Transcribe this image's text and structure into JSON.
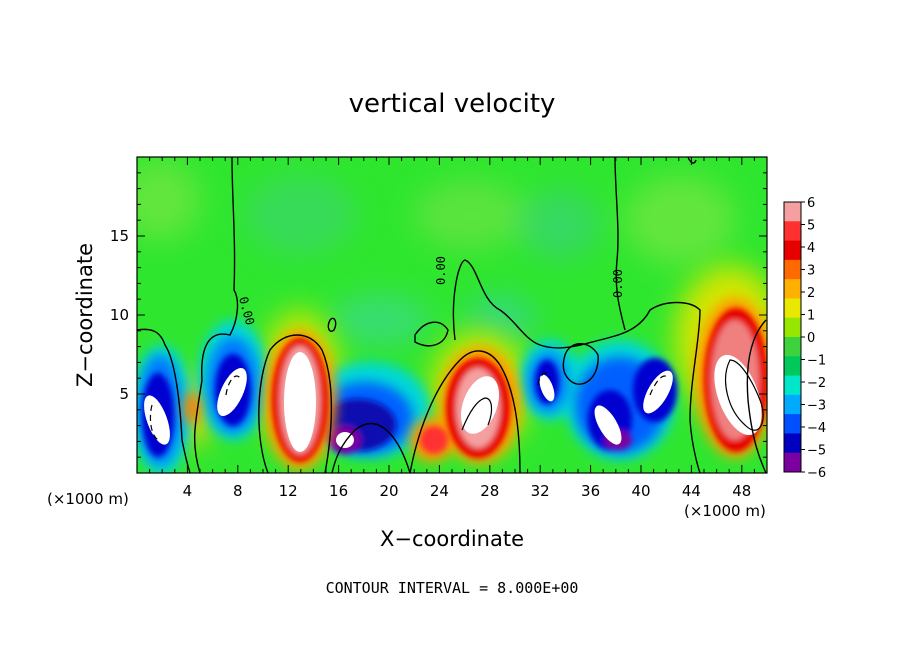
{
  "chart_data": {
    "type": "heatmap",
    "title": "vertical velocity",
    "xlabel": "X−coordinate",
    "ylabel": "Z−coordinate",
    "x_unit": "(×1000 m)",
    "z_unit": "(×1000 m)",
    "xlim": [
      0,
      50
    ],
    "ylim": [
      0,
      20
    ],
    "x_ticks": [
      "4",
      "8",
      "12",
      "16",
      "20",
      "24",
      "28",
      "32",
      "36",
      "40",
      "44",
      "48"
    ],
    "y_ticks": [
      "5",
      "10",
      "15"
    ],
    "colorbar": {
      "range": [
        -6,
        6
      ],
      "ticks": [
        "6",
        "5",
        "4",
        "3",
        "2",
        "1",
        "0",
        "−1",
        "−2",
        "−3",
        "−4",
        "−5",
        "−6"
      ],
      "colors": [
        "#f4a0a0",
        "#ff3030",
        "#e60000",
        "#ff6a00",
        "#ffb000",
        "#e8e800",
        "#96e600",
        "#3ed23e",
        "#00c85a",
        "#00e6c8",
        "#00aaff",
        "#0050ff",
        "#0000c0",
        "#7a00a0"
      ]
    },
    "contour_labels": [
      "0.00",
      "0.00",
      "0.00"
    ],
    "contour_interval_text": "CONTOUR INTERVAL = 8.000E+00",
    "cells": [
      {
        "x": 2,
        "z": 3.5,
        "w": -8
      },
      {
        "x": 7.5,
        "z": 5.0,
        "w": -7
      },
      {
        "x": 13.5,
        "z": 4.5,
        "w": 9
      },
      {
        "x": 17.5,
        "z": 2.5,
        "w": -6
      },
      {
        "x": 23.5,
        "z": 2.0,
        "w": 4
      },
      {
        "x": 26.5,
        "z": 4.5,
        "w": 8
      },
      {
        "x": 32,
        "z": 5.5,
        "w": -6
      },
      {
        "x": 37,
        "z": 3.0,
        "w": -7
      },
      {
        "x": 40.5,
        "z": 5.5,
        "w": -7
      },
      {
        "x": 48,
        "z": 5.0,
        "w": 10
      }
    ]
  }
}
